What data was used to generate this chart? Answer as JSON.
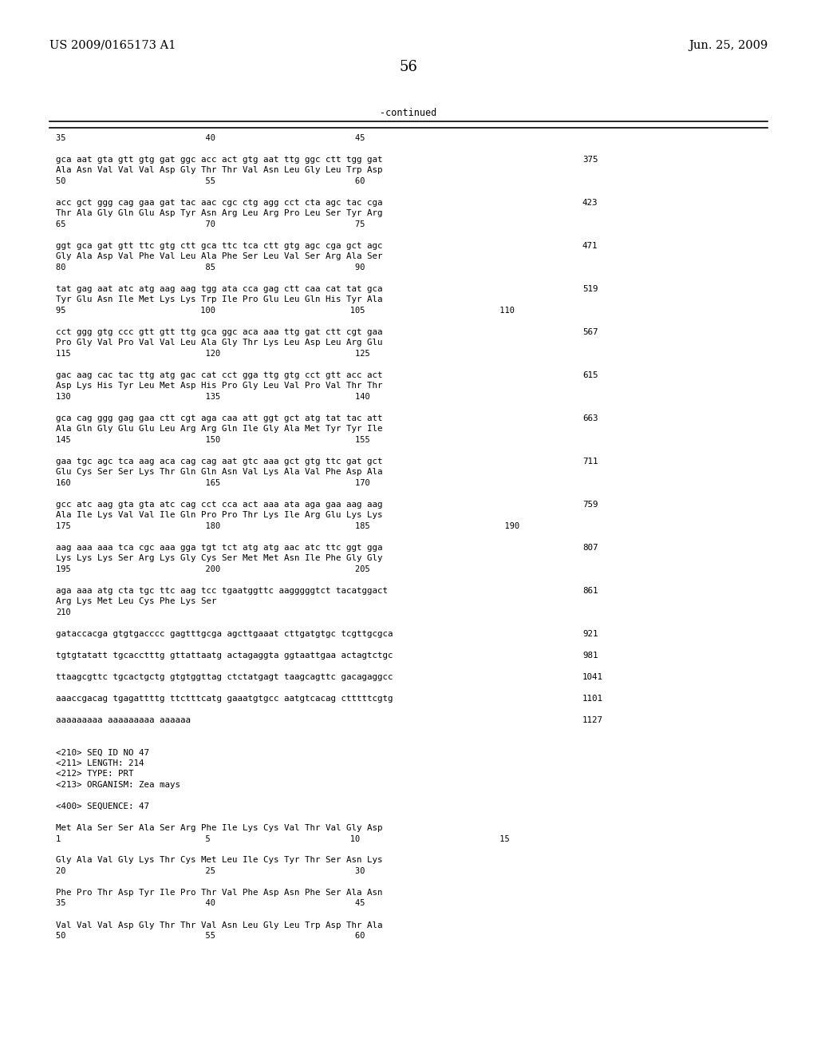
{
  "header_left": "US 2009/0165173 A1",
  "header_right": "Jun. 25, 2009",
  "page_number": "56",
  "continued_label": "-continued",
  "background_color": "#ffffff",
  "text_color": "#000000",
  "font_size_header": 10.5,
  "font_size_body": 8.5,
  "font_size_page": 13,
  "content_lines": [
    {
      "y": 0,
      "type": "ruler_label",
      "text": "35                            40                            45"
    },
    {
      "y": 1,
      "type": "blank"
    },
    {
      "y": 2,
      "type": "seq",
      "text": "gca aat gta gtt gtg gat ggc acc act gtg aat ttg ggc ctt tgg gat",
      "num": "375"
    },
    {
      "y": 3,
      "type": "aa",
      "text": "Ala Asn Val Val Val Asp Gly Thr Thr Val Asn Leu Gly Leu Trp Asp"
    },
    {
      "y": 4,
      "type": "ruler_label",
      "text": "50                            55                            60"
    },
    {
      "y": 5,
      "type": "blank"
    },
    {
      "y": 6,
      "type": "seq",
      "text": "acc gct ggg cag gaa gat tac aac cgc ctg agg cct cta agc tac cga",
      "num": "423"
    },
    {
      "y": 7,
      "type": "aa",
      "text": "Thr Ala Gly Gln Glu Asp Tyr Asn Arg Leu Arg Pro Leu Ser Tyr Arg"
    },
    {
      "y": 8,
      "type": "ruler_label",
      "text": "65                            70                            75"
    },
    {
      "y": 9,
      "type": "blank"
    },
    {
      "y": 10,
      "type": "seq",
      "text": "ggt gca gat gtt ttc gtg ctt gca ttc tca ctt gtg agc cga gct agc",
      "num": "471"
    },
    {
      "y": 11,
      "type": "aa",
      "text": "Gly Ala Asp Val Phe Val Leu Ala Phe Ser Leu Val Ser Arg Ala Ser"
    },
    {
      "y": 12,
      "type": "ruler_label",
      "text": "80                            85                            90"
    },
    {
      "y": 13,
      "type": "blank"
    },
    {
      "y": 14,
      "type": "seq",
      "text": "tat gag aat atc atg aag aag tgg ata cca gag ctt caa cat tat gca",
      "num": "519"
    },
    {
      "y": 15,
      "type": "aa",
      "text": "Tyr Glu Asn Ile Met Lys Lys Trp Ile Pro Glu Leu Gln His Tyr Ala"
    },
    {
      "y": 16,
      "type": "ruler_label",
      "text": "95                           100                           105                           110"
    },
    {
      "y": 17,
      "type": "blank"
    },
    {
      "y": 18,
      "type": "seq",
      "text": "cct ggg gtg ccc gtt gtt ttg gca ggc aca aaa ttg gat ctt cgt gaa",
      "num": "567"
    },
    {
      "y": 19,
      "type": "aa",
      "text": "Pro Gly Val Pro Val Val Leu Ala Gly Thr Lys Leu Asp Leu Arg Glu"
    },
    {
      "y": 20,
      "type": "ruler_label",
      "text": "115                           120                           125"
    },
    {
      "y": 21,
      "type": "blank"
    },
    {
      "y": 22,
      "type": "seq",
      "text": "gac aag cac tac ttg atg gac cat cct gga ttg gtg cct gtt acc act",
      "num": "615"
    },
    {
      "y": 23,
      "type": "aa",
      "text": "Asp Lys His Tyr Leu Met Asp His Pro Gly Leu Val Pro Val Thr Thr"
    },
    {
      "y": 24,
      "type": "ruler_label",
      "text": "130                           135                           140"
    },
    {
      "y": 25,
      "type": "blank"
    },
    {
      "y": 26,
      "type": "seq",
      "text": "gca cag ggg gag gaa ctt cgt aga caa att ggt gct atg tat tac att",
      "num": "663"
    },
    {
      "y": 27,
      "type": "aa",
      "text": "Ala Gln Gly Glu Glu Leu Arg Arg Gln Ile Gly Ala Met Tyr Tyr Ile"
    },
    {
      "y": 28,
      "type": "ruler_label",
      "text": "145                           150                           155"
    },
    {
      "y": 29,
      "type": "blank"
    },
    {
      "y": 30,
      "type": "seq",
      "text": "gaa tgc agc tca aag aca cag cag aat gtc aaa gct gtg ttc gat gct",
      "num": "711"
    },
    {
      "y": 31,
      "type": "aa",
      "text": "Glu Cys Ser Ser Lys Thr Gln Gln Asn Val Lys Ala Val Phe Asp Ala"
    },
    {
      "y": 32,
      "type": "ruler_label",
      "text": "160                           165                           170"
    },
    {
      "y": 33,
      "type": "blank"
    },
    {
      "y": 34,
      "type": "seq",
      "text": "gcc atc aag gta gta atc cag cct cca act aaa ata aga gaa aag aag",
      "num": "759"
    },
    {
      "y": 35,
      "type": "aa",
      "text": "Ala Ile Lys Val Val Ile Gln Pro Pro Thr Lys Ile Arg Glu Lys Lys"
    },
    {
      "y": 36,
      "type": "ruler_label",
      "text": "175                           180                           185                           190"
    },
    {
      "y": 37,
      "type": "blank"
    },
    {
      "y": 38,
      "type": "seq",
      "text": "aag aaa aaa tca cgc aaa gga tgt tct atg atg aac atc ttc ggt gga",
      "num": "807"
    },
    {
      "y": 39,
      "type": "aa",
      "text": "Lys Lys Lys Ser Arg Lys Gly Cys Ser Met Met Asn Ile Phe Gly Gly"
    },
    {
      "y": 40,
      "type": "ruler_label",
      "text": "195                           200                           205"
    },
    {
      "y": 41,
      "type": "blank"
    },
    {
      "y": 42,
      "type": "seq",
      "text": "aga aaa atg cta tgc ttc aag tcc tgaatggttc aagggggtct tacatggact",
      "num": "861"
    },
    {
      "y": 43,
      "type": "aa",
      "text": "Arg Lys Met Leu Cys Phe Lys Ser"
    },
    {
      "y": 44,
      "type": "ruler_label",
      "text": "210"
    },
    {
      "y": 45,
      "type": "blank"
    },
    {
      "y": 46,
      "type": "seq",
      "text": "gataccacga gtgtgacccc gagtttgcga agcttgaaat cttgatgtgc tcgttgcgca",
      "num": "921"
    },
    {
      "y": 47,
      "type": "blank"
    },
    {
      "y": 48,
      "type": "seq",
      "text": "tgtgtatatt tgcacctttg gttattaatg actagaggta ggtaattgaa actagtctgc",
      "num": "981"
    },
    {
      "y": 49,
      "type": "blank"
    },
    {
      "y": 50,
      "type": "seq",
      "text": "ttaagcgttc tgcactgctg gtgtggttag ctctatgagt taagcagttc gacagaggcc",
      "num": "1041"
    },
    {
      "y": 51,
      "type": "blank"
    },
    {
      "y": 52,
      "type": "seq",
      "text": "aaaccgacag tgagattttg ttctttcatg gaaatgtgcc aatgtcacag ctttttcgtg",
      "num": "1101"
    },
    {
      "y": 53,
      "type": "blank"
    },
    {
      "y": 54,
      "type": "seq",
      "text": "aaaaaaaaa aaaaaaaaa aaaaaa",
      "num": "1127"
    },
    {
      "y": 55,
      "type": "blank"
    },
    {
      "y": 56,
      "type": "blank"
    },
    {
      "y": 57,
      "type": "info",
      "text": "<210> SEQ ID NO 47"
    },
    {
      "y": 58,
      "type": "info",
      "text": "<211> LENGTH: 214"
    },
    {
      "y": 59,
      "type": "info",
      "text": "<212> TYPE: PRT"
    },
    {
      "y": 60,
      "type": "info",
      "text": "<213> ORGANISM: Zea mays"
    },
    {
      "y": 61,
      "type": "blank"
    },
    {
      "y": 62,
      "type": "info",
      "text": "<400> SEQUENCE: 47"
    },
    {
      "y": 63,
      "type": "blank"
    },
    {
      "y": 64,
      "type": "seq",
      "text": "Met Ala Ser Ser Ala Ser Arg Phe Ile Lys Cys Val Thr Val Gly Asp",
      "num": ""
    },
    {
      "y": 65,
      "type": "ruler_label",
      "text": "1                             5                            10                            15"
    },
    {
      "y": 66,
      "type": "blank"
    },
    {
      "y": 67,
      "type": "seq",
      "text": "Gly Ala Val Gly Lys Thr Cys Met Leu Ile Cys Tyr Thr Ser Asn Lys",
      "num": ""
    },
    {
      "y": 68,
      "type": "ruler_label",
      "text": "20                            25                            30"
    },
    {
      "y": 69,
      "type": "blank"
    },
    {
      "y": 70,
      "type": "seq",
      "text": "Phe Pro Thr Asp Tyr Ile Pro Thr Val Phe Asp Asn Phe Ser Ala Asn",
      "num": ""
    },
    {
      "y": 71,
      "type": "ruler_label",
      "text": "35                            40                            45"
    },
    {
      "y": 72,
      "type": "blank"
    },
    {
      "y": 73,
      "type": "seq",
      "text": "Val Val Val Asp Gly Thr Thr Val Asn Leu Gly Leu Trp Asp Thr Ala",
      "num": ""
    },
    {
      "y": 74,
      "type": "ruler_label",
      "text": "50                            55                            60"
    }
  ]
}
